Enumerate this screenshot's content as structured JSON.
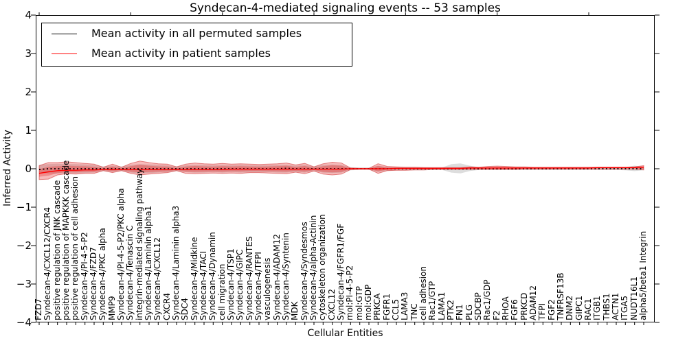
{
  "title": "Syndecan-4-mediated signaling events -- 53 samples",
  "axes": {
    "ylabel": "Inferred Activity",
    "xlabel": "Cellular Entities",
    "y_tick_labels": [
      "4",
      "3",
      "2",
      "1",
      "0",
      "−1",
      "−2",
      "−3",
      "−4"
    ],
    "y_tick_values": [
      4,
      3,
      2,
      1,
      0,
      -1,
      -2,
      -3,
      -4
    ],
    "ylim": [
      -4,
      4
    ]
  },
  "legend": {
    "items": [
      {
        "label": "Mean activity in all permuted samples",
        "color": "#000000"
      },
      {
        "label": "Mean activity in patient samples",
        "color": "#ff0000"
      }
    ]
  },
  "colors": {
    "frame": "#000000",
    "patient_line": "#ff0000",
    "permuted_line": "#000000",
    "patient_band_fill": "rgba(230,30,30,0.30)",
    "patient_band_edge": "rgba(205,40,40,0.55)",
    "permuted_band_fill": "rgba(120,120,120,0.25)"
  },
  "chart_data": {
    "type": "line",
    "title": "Syndecan-4-mediated signaling events -- 53 samples",
    "xlabel": "Cellular Entities",
    "ylabel": "Inferred Activity",
    "ylim": [
      -4,
      4
    ],
    "grid": false,
    "legend_position": "upper left",
    "categories": [
      "FZD7",
      "Syndecan-4/CXCL12/CXCR4",
      "positive regulation of JNK cascade",
      "positive regulation of MAPKKK cascade",
      "positive regulation of cell adhesion",
      "Syndecan-4/PI-4-5-P2",
      "Syndecan-4/FZD7",
      "Syndecan-4/PKC alpha",
      "MMP9",
      "Syndecan-4/PI-4-5-P2/PKC alpha",
      "Syndecan-4/Tenascin C",
      "integrin-mediated signaling pathway",
      "Syndecan-4/Laminin alpha1",
      "Syndecan-4/CXCL12",
      "CXCR4",
      "Syndecan-4/Laminin alpha3",
      "SDC4",
      "Syndecan-4/Midkine",
      "Syndecan-4/TACI",
      "Syndecan-4/Dynamin",
      "cell migration",
      "Syndecan-4/TSP1",
      "Syndecan-4/GIPC",
      "Syndecan-4/RANTES",
      "Syndecan-4/TFPI",
      "vasculogenesis",
      "Syndecan-4/ADAM12",
      "Syndecan-4/Syntenin",
      "MDK",
      "Syndecan-4/Syndesmos",
      "Syndecan-4/alpha-Actinin",
      "cytoskeleton organization",
      "CXCL12",
      "Syndecan-4/FGFR1/FGF",
      "mol:PI-4-5-P2",
      "mol:GTP",
      "mol:GDP",
      "PRKCA",
      "FGFR1",
      "CCL5",
      "LAMA3",
      "TNC",
      "cell adhesion",
      "Rac1/GTP",
      "LAMA1",
      "PTK2",
      "FN1",
      "PLG",
      "SDCBP",
      "Rac1/GDP",
      "F2",
      "RHOA",
      "FGF6",
      "PRKCD",
      "ADAM12",
      "TFPI",
      "FGF2",
      "TNFRSF13B",
      "DNM2",
      "GIPC1",
      "RAC1",
      "ITGB1",
      "THBS1",
      "ACTN1",
      "ITGA5",
      "NUDT16L1",
      "alpha5/beta1 Integrin"
    ],
    "series": [
      {
        "name": "Mean activity in all permuted samples",
        "style": "dotted-black-line",
        "values": [
          -0.02,
          0,
          0,
          0,
          0,
          0,
          0,
          0,
          0,
          0,
          0,
          0,
          0,
          0,
          0,
          0,
          0,
          0,
          0,
          0,
          0,
          0,
          0,
          0,
          0,
          0,
          0,
          0.01,
          0,
          0,
          0,
          0,
          0,
          0,
          0,
          0,
          0,
          0,
          0,
          0,
          0,
          0,
          0,
          0,
          0,
          0,
          0,
          0,
          0,
          0,
          0,
          0,
          0,
          0,
          0,
          0,
          0,
          0,
          0,
          0,
          0,
          0,
          0,
          0,
          0,
          0,
          0
        ]
      },
      {
        "name": "Mean activity in patient samples",
        "style": "solid-red-line",
        "values": [
          -0.12,
          -0.08,
          -0.05,
          -0.04,
          -0.04,
          -0.03,
          -0.03,
          -0.02,
          -0.02,
          -0.02,
          -0.02,
          -0.02,
          -0.02,
          -0.02,
          -0.02,
          -0.02,
          -0.02,
          -0.02,
          -0.02,
          -0.02,
          -0.02,
          -0.01,
          -0.01,
          -0.01,
          -0.01,
          -0.01,
          -0.01,
          -0.01,
          -0.01,
          -0.01,
          -0.01,
          -0.01,
          -0.01,
          -0.01,
          0,
          0,
          0,
          0,
          0,
          0.01,
          0.01,
          0.01,
          0.01,
          0.01,
          0.01,
          0.01,
          0.01,
          0.02,
          0.02,
          0.02,
          0.02,
          0.02,
          0.02,
          0.02,
          0.02,
          0.02,
          0.02,
          0.02,
          0.02,
          0.02,
          0.02,
          0.03,
          0.03,
          0.03,
          0.03,
          0.03,
          0.04
        ]
      },
      {
        "name": "patient band upper",
        "style": "red-band-edge",
        "values": [
          0.08,
          0.16,
          0.16,
          0.18,
          0.16,
          0.14,
          0.12,
          0.04,
          0.12,
          0.04,
          0.14,
          0.2,
          0.16,
          0.13,
          0.12,
          0.05,
          0.12,
          0.15,
          0.13,
          0.12,
          0.14,
          0.12,
          0.13,
          0.12,
          0.11,
          0.12,
          0.13,
          0.15,
          0.1,
          0.14,
          0.05,
          0.13,
          0.17,
          0.15,
          0.02,
          0.01,
          0.01,
          0.13,
          0.06,
          0.05,
          0.04,
          0.04,
          0.03,
          0.03,
          0.03,
          0.03,
          0.03,
          0.05,
          0.04,
          0.06,
          0.07,
          0.06,
          0.05,
          0.05,
          0.04,
          0.04,
          0.04,
          0.04,
          0.04,
          0.04,
          0.04,
          0.04,
          0.04,
          0.04,
          0.04,
          0.05,
          0.08
        ]
      },
      {
        "name": "patient band lower",
        "style": "red-band-edge",
        "values": [
          -0.28,
          -0.27,
          -0.16,
          -0.13,
          -0.14,
          -0.12,
          -0.12,
          -0.05,
          -0.1,
          -0.05,
          -0.12,
          -0.16,
          -0.14,
          -0.12,
          -0.1,
          -0.05,
          -0.12,
          -0.13,
          -0.12,
          -0.11,
          -0.12,
          -0.11,
          -0.12,
          -0.1,
          -0.1,
          -0.11,
          -0.12,
          -0.13,
          -0.09,
          -0.13,
          -0.06,
          -0.14,
          -0.16,
          -0.14,
          -0.02,
          -0.01,
          -0.01,
          -0.12,
          -0.05,
          -0.04,
          -0.04,
          -0.03,
          -0.03,
          -0.02,
          -0.02,
          -0.02,
          -0.02,
          -0.02,
          -0.02,
          -0.02,
          -0.02,
          -0.02,
          -0.02,
          -0.01,
          -0.01,
          -0.01,
          -0.01,
          -0.01,
          -0.01,
          -0.01,
          -0.01,
          -0.01,
          -0.01,
          -0.01,
          -0.01,
          -0.01,
          -0.03
        ]
      },
      {
        "name": "permuted band upper",
        "style": "gray-band-edge",
        "values": [
          0.1,
          0.12,
          0.13,
          0.12,
          0.12,
          0.11,
          0.1,
          0.06,
          0.08,
          0.06,
          0.1,
          0.12,
          0.11,
          0.1,
          0.09,
          0.06,
          0.09,
          0.1,
          0.1,
          0.09,
          0.1,
          0.09,
          0.1,
          0.09,
          0.09,
          0.09,
          0.1,
          0.1,
          0.08,
          0.1,
          0.06,
          0.1,
          0.11,
          0.1,
          0.04,
          0.03,
          0.03,
          0.08,
          0.05,
          0.04,
          0.04,
          0.04,
          0.04,
          0.03,
          0.03,
          0.12,
          0.14,
          0.08,
          0.04,
          0.04,
          0.04,
          0.04,
          0.04,
          0.04,
          0.03,
          0.03,
          0.03,
          0.03,
          0.03,
          0.03,
          0.03,
          0.03,
          0.03,
          0.03,
          0.04,
          0.08,
          0.05
        ]
      },
      {
        "name": "permuted band lower",
        "style": "gray-band-edge",
        "values": [
          -0.1,
          -0.12,
          -0.13,
          -0.12,
          -0.12,
          -0.11,
          -0.1,
          -0.06,
          -0.08,
          -0.06,
          -0.1,
          -0.12,
          -0.11,
          -0.1,
          -0.09,
          -0.06,
          -0.09,
          -0.1,
          -0.1,
          -0.09,
          -0.1,
          -0.09,
          -0.1,
          -0.09,
          -0.09,
          -0.09,
          -0.1,
          -0.1,
          -0.08,
          -0.1,
          -0.06,
          -0.1,
          -0.11,
          -0.1,
          -0.04,
          -0.03,
          -0.03,
          -0.08,
          -0.05,
          -0.04,
          -0.04,
          -0.04,
          -0.04,
          -0.03,
          -0.03,
          -0.1,
          -0.12,
          -0.06,
          -0.03,
          -0.03,
          -0.03,
          -0.03,
          -0.03,
          -0.03,
          -0.03,
          -0.03,
          -0.03,
          -0.03,
          -0.03,
          -0.03,
          -0.03,
          -0.03,
          -0.03,
          -0.03,
          -0.04,
          -0.06,
          -0.04
        ]
      }
    ]
  }
}
